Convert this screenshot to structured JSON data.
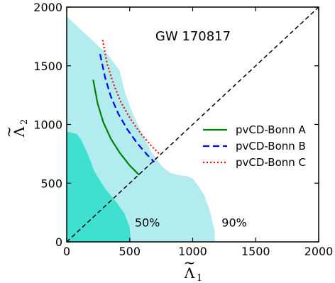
{
  "chart_data": {
    "type": "area",
    "title": "GW 170817",
    "xlabel_main": "Λ",
    "xlabel_tilde": "~",
    "xlabel_sub": "1",
    "ylabel_main": "Λ",
    "ylabel_tilde": "~",
    "ylabel_sub": "2",
    "xlim": [
      0,
      2000
    ],
    "ylim": [
      0,
      2000
    ],
    "xticks": [
      0,
      500,
      1000,
      1500,
      2000
    ],
    "yticks": [
      0,
      500,
      1000,
      1500,
      2000
    ],
    "xtick_labels": [
      "0",
      "500",
      "1000",
      "1500",
      "2000"
    ],
    "ytick_labels": [
      "0",
      "500",
      "1000",
      "1500",
      "2000"
    ],
    "regions": [
      {
        "label": "90%",
        "label_pos": [
          1330,
          130
        ],
        "color": "#b2ecee",
        "points": [
          [
            0,
            0
          ],
          [
            0,
            1920
          ],
          [
            80,
            1840
          ],
          [
            200,
            1720
          ],
          [
            330,
            1590
          ],
          [
            420,
            1460
          ],
          [
            460,
            1280
          ],
          [
            510,
            1130
          ],
          [
            580,
            960
          ],
          [
            680,
            750
          ],
          [
            760,
            640
          ],
          [
            820,
            590
          ],
          [
            880,
            570
          ],
          [
            950,
            560
          ],
          [
            1000,
            540
          ],
          [
            1050,
            470
          ],
          [
            1090,
            400
          ],
          [
            1140,
            250
          ],
          [
            1175,
            80
          ],
          [
            1175,
            0
          ]
        ]
      },
      {
        "label": "50%",
        "label_pos": [
          640,
          130
        ],
        "color": "#40e0d0",
        "points": [
          [
            0,
            0
          ],
          [
            0,
            940
          ],
          [
            80,
            920
          ],
          [
            120,
            860
          ],
          [
            170,
            740
          ],
          [
            220,
            600
          ],
          [
            300,
            460
          ],
          [
            400,
            330
          ],
          [
            460,
            240
          ],
          [
            500,
            120
          ],
          [
            510,
            0
          ]
        ]
      }
    ],
    "series": [
      {
        "name": "pvCD-Bonn A",
        "color": "#008000",
        "style": "solid",
        "points": [
          [
            210,
            1380
          ],
          [
            245,
            1180
          ],
          [
            290,
            1020
          ],
          [
            350,
            880
          ],
          [
            420,
            760
          ],
          [
            500,
            650
          ],
          [
            575,
            570
          ]
        ]
      },
      {
        "name": "pvCD-Bonn B",
        "color": "#0000ff",
        "style": "dashed",
        "points": [
          [
            265,
            1600
          ],
          [
            305,
            1400
          ],
          [
            350,
            1240
          ],
          [
            410,
            1090
          ],
          [
            480,
            960
          ],
          [
            560,
            840
          ],
          [
            640,
            740
          ],
          [
            695,
            680
          ]
        ]
      },
      {
        "name": "pvCD-Bonn C",
        "color": "#ff0000",
        "style": "dotted",
        "points": [
          [
            285,
            1720
          ],
          [
            320,
            1520
          ],
          [
            370,
            1350
          ],
          [
            430,
            1190
          ],
          [
            510,
            1040
          ],
          [
            590,
            920
          ],
          [
            670,
            820
          ],
          [
            735,
            750
          ]
        ]
      }
    ],
    "diagonal": [
      [
        0,
        0
      ],
      [
        2000,
        2000
      ]
    ],
    "legend_placement": "center-right"
  }
}
